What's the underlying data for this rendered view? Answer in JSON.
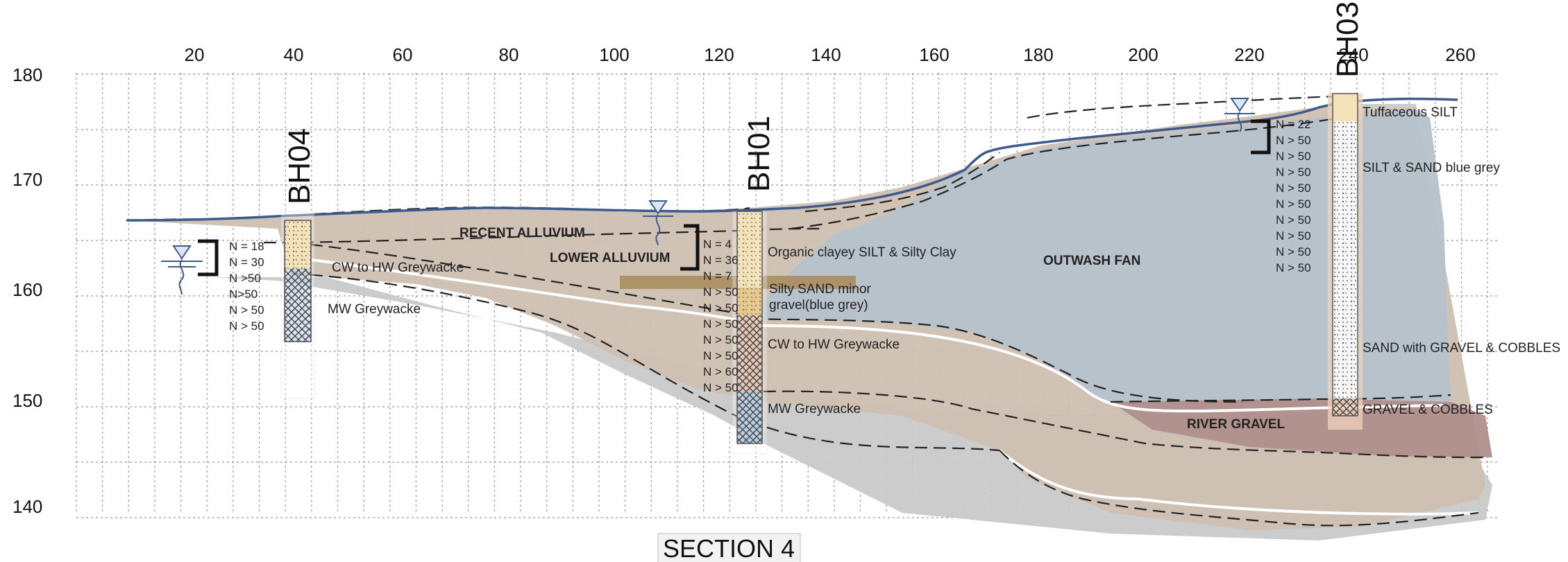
{
  "title": "SECTION 4",
  "x_ticks": [
    "20",
    "40",
    "60",
    "80",
    "100",
    "120",
    "140",
    "160",
    "180",
    "200",
    "220",
    "240",
    "260"
  ],
  "y_ticks": [
    "180",
    "170",
    "160",
    "150",
    "140"
  ],
  "geologic_units": {
    "recent_alluvium": "RECENT ALLUVIUM",
    "lower_alluvium": "LOWER ALLUVIUM",
    "outwash_fan": "OUTWASH FAN",
    "river_gravel": "RIVER GRAVEL"
  },
  "boreholes": [
    {
      "id": "BH04",
      "descriptions": [
        "CW to HW Greywacke",
        "MW Greywacke"
      ],
      "spt": [
        "N = 18",
        "N = 30",
        "N >50",
        "N>50",
        "N > 50",
        "N > 50"
      ]
    },
    {
      "id": "BH01",
      "descriptions": [
        "Organic clayey SILT & Silty Clay",
        "Silty SAND minor",
        "gravel(blue grey)",
        "CW to HW Greywacke",
        "MW Greywacke"
      ],
      "spt": [
        "N = 4",
        "N = 36",
        "N = 7",
        "N > 50",
        "N > 50",
        "N > 50",
        "N > 50",
        "N > 50",
        "N > 60",
        "N > 50"
      ]
    },
    {
      "id": "BH03",
      "descriptions": [
        "Tuffaceous SILT",
        "SILT & SAND blue grey",
        "SAND with GRAVEL & COBBLES",
        "GRAVEL & COBBLES"
      ],
      "spt": [
        "N = 22",
        "N > 50",
        "N > 50",
        "N > 50",
        "N > 50",
        "N > 50",
        "N > 50",
        "N > 50",
        "N > 50",
        "N > 50"
      ]
    }
  ],
  "colors": {
    "ground_line": "#3c5a8c",
    "alluvium_fill": "#cfc2b4",
    "outwash_fill": "#b9c3cb",
    "bedrock_fill": "#c8c8c8",
    "river_gravel_fill": "#b08f8c",
    "sand_layer_fill": "#a88a5a",
    "borehole_column": "#f4e3b8"
  },
  "icons": {
    "groundwater": "groundwater-level-icon",
    "spt_bracket": "bracket-icon"
  }
}
